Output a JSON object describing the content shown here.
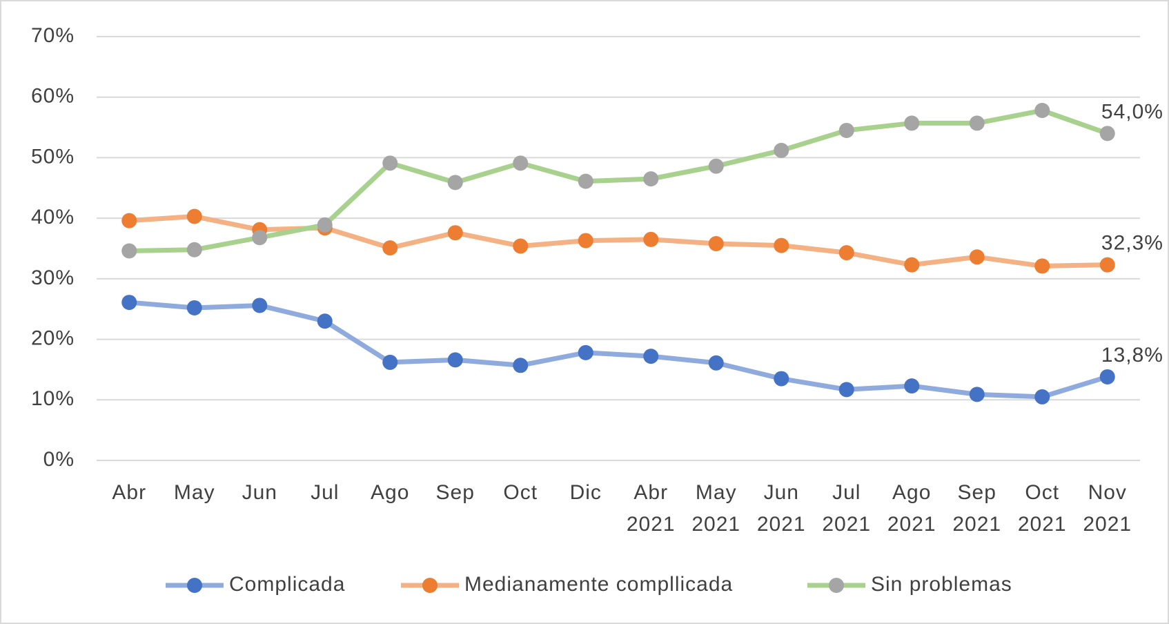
{
  "chart_data": {
    "type": "line",
    "categories": [
      "Abr",
      "May",
      "Jun",
      "Jul",
      "Ago",
      "Sep",
      "Oct",
      "Dic",
      "Abr 2021",
      "May 2021",
      "Jun 2021",
      "Jul 2021",
      "Ago 2021",
      "Sep 2021",
      "Oct 2021",
      "Nov 2021"
    ],
    "series": [
      {
        "name": "Complicada",
        "color": "#4472c4",
        "line_color": "#8faadc",
        "values": [
          26.1,
          25.2,
          25.6,
          23.0,
          16.2,
          16.6,
          15.7,
          17.8,
          17.2,
          16.1,
          13.5,
          11.7,
          12.3,
          10.9,
          10.5,
          13.8
        ],
        "value_labels": [
          null,
          null,
          null,
          null,
          null,
          null,
          null,
          null,
          null,
          null,
          null,
          null,
          null,
          null,
          null,
          "13,8%"
        ]
      },
      {
        "name": "Medianamente compllicada",
        "color": "#ed7d31",
        "line_color": "#f4b183",
        "values": [
          39.6,
          40.3,
          38.1,
          38.4,
          35.1,
          37.6,
          35.4,
          36.3,
          36.5,
          35.8,
          35.5,
          34.3,
          32.3,
          33.6,
          32.1,
          32.3
        ],
        "value_labels": [
          null,
          null,
          null,
          null,
          null,
          null,
          null,
          null,
          null,
          null,
          null,
          null,
          null,
          null,
          null,
          "32,3%"
        ]
      },
      {
        "name": "Sin problemas",
        "color": "#a5a5a5",
        "line_color": "#a9d18e",
        "values": [
          34.6,
          34.8,
          36.8,
          38.9,
          49.1,
          45.9,
          49.1,
          46.1,
          46.5,
          48.6,
          51.2,
          54.5,
          55.7,
          55.7,
          57.8,
          54.0
        ],
        "value_labels": [
          null,
          null,
          null,
          null,
          null,
          null,
          null,
          null,
          null,
          null,
          null,
          null,
          null,
          null,
          null,
          "54,0%"
        ]
      }
    ],
    "ylim": [
      0,
      70
    ],
    "yticks": [
      {
        "value": 0,
        "label": "0%"
      },
      {
        "value": 10,
        "label": "10%"
      },
      {
        "value": 20,
        "label": "20%"
      },
      {
        "value": 30,
        "label": "30%"
      },
      {
        "value": 40,
        "label": "40%"
      },
      {
        "value": 50,
        "label": "50%"
      },
      {
        "value": 60,
        "label": "60%"
      },
      {
        "value": 70,
        "label": "70%"
      }
    ],
    "grid": true,
    "legend": "bottom"
  }
}
